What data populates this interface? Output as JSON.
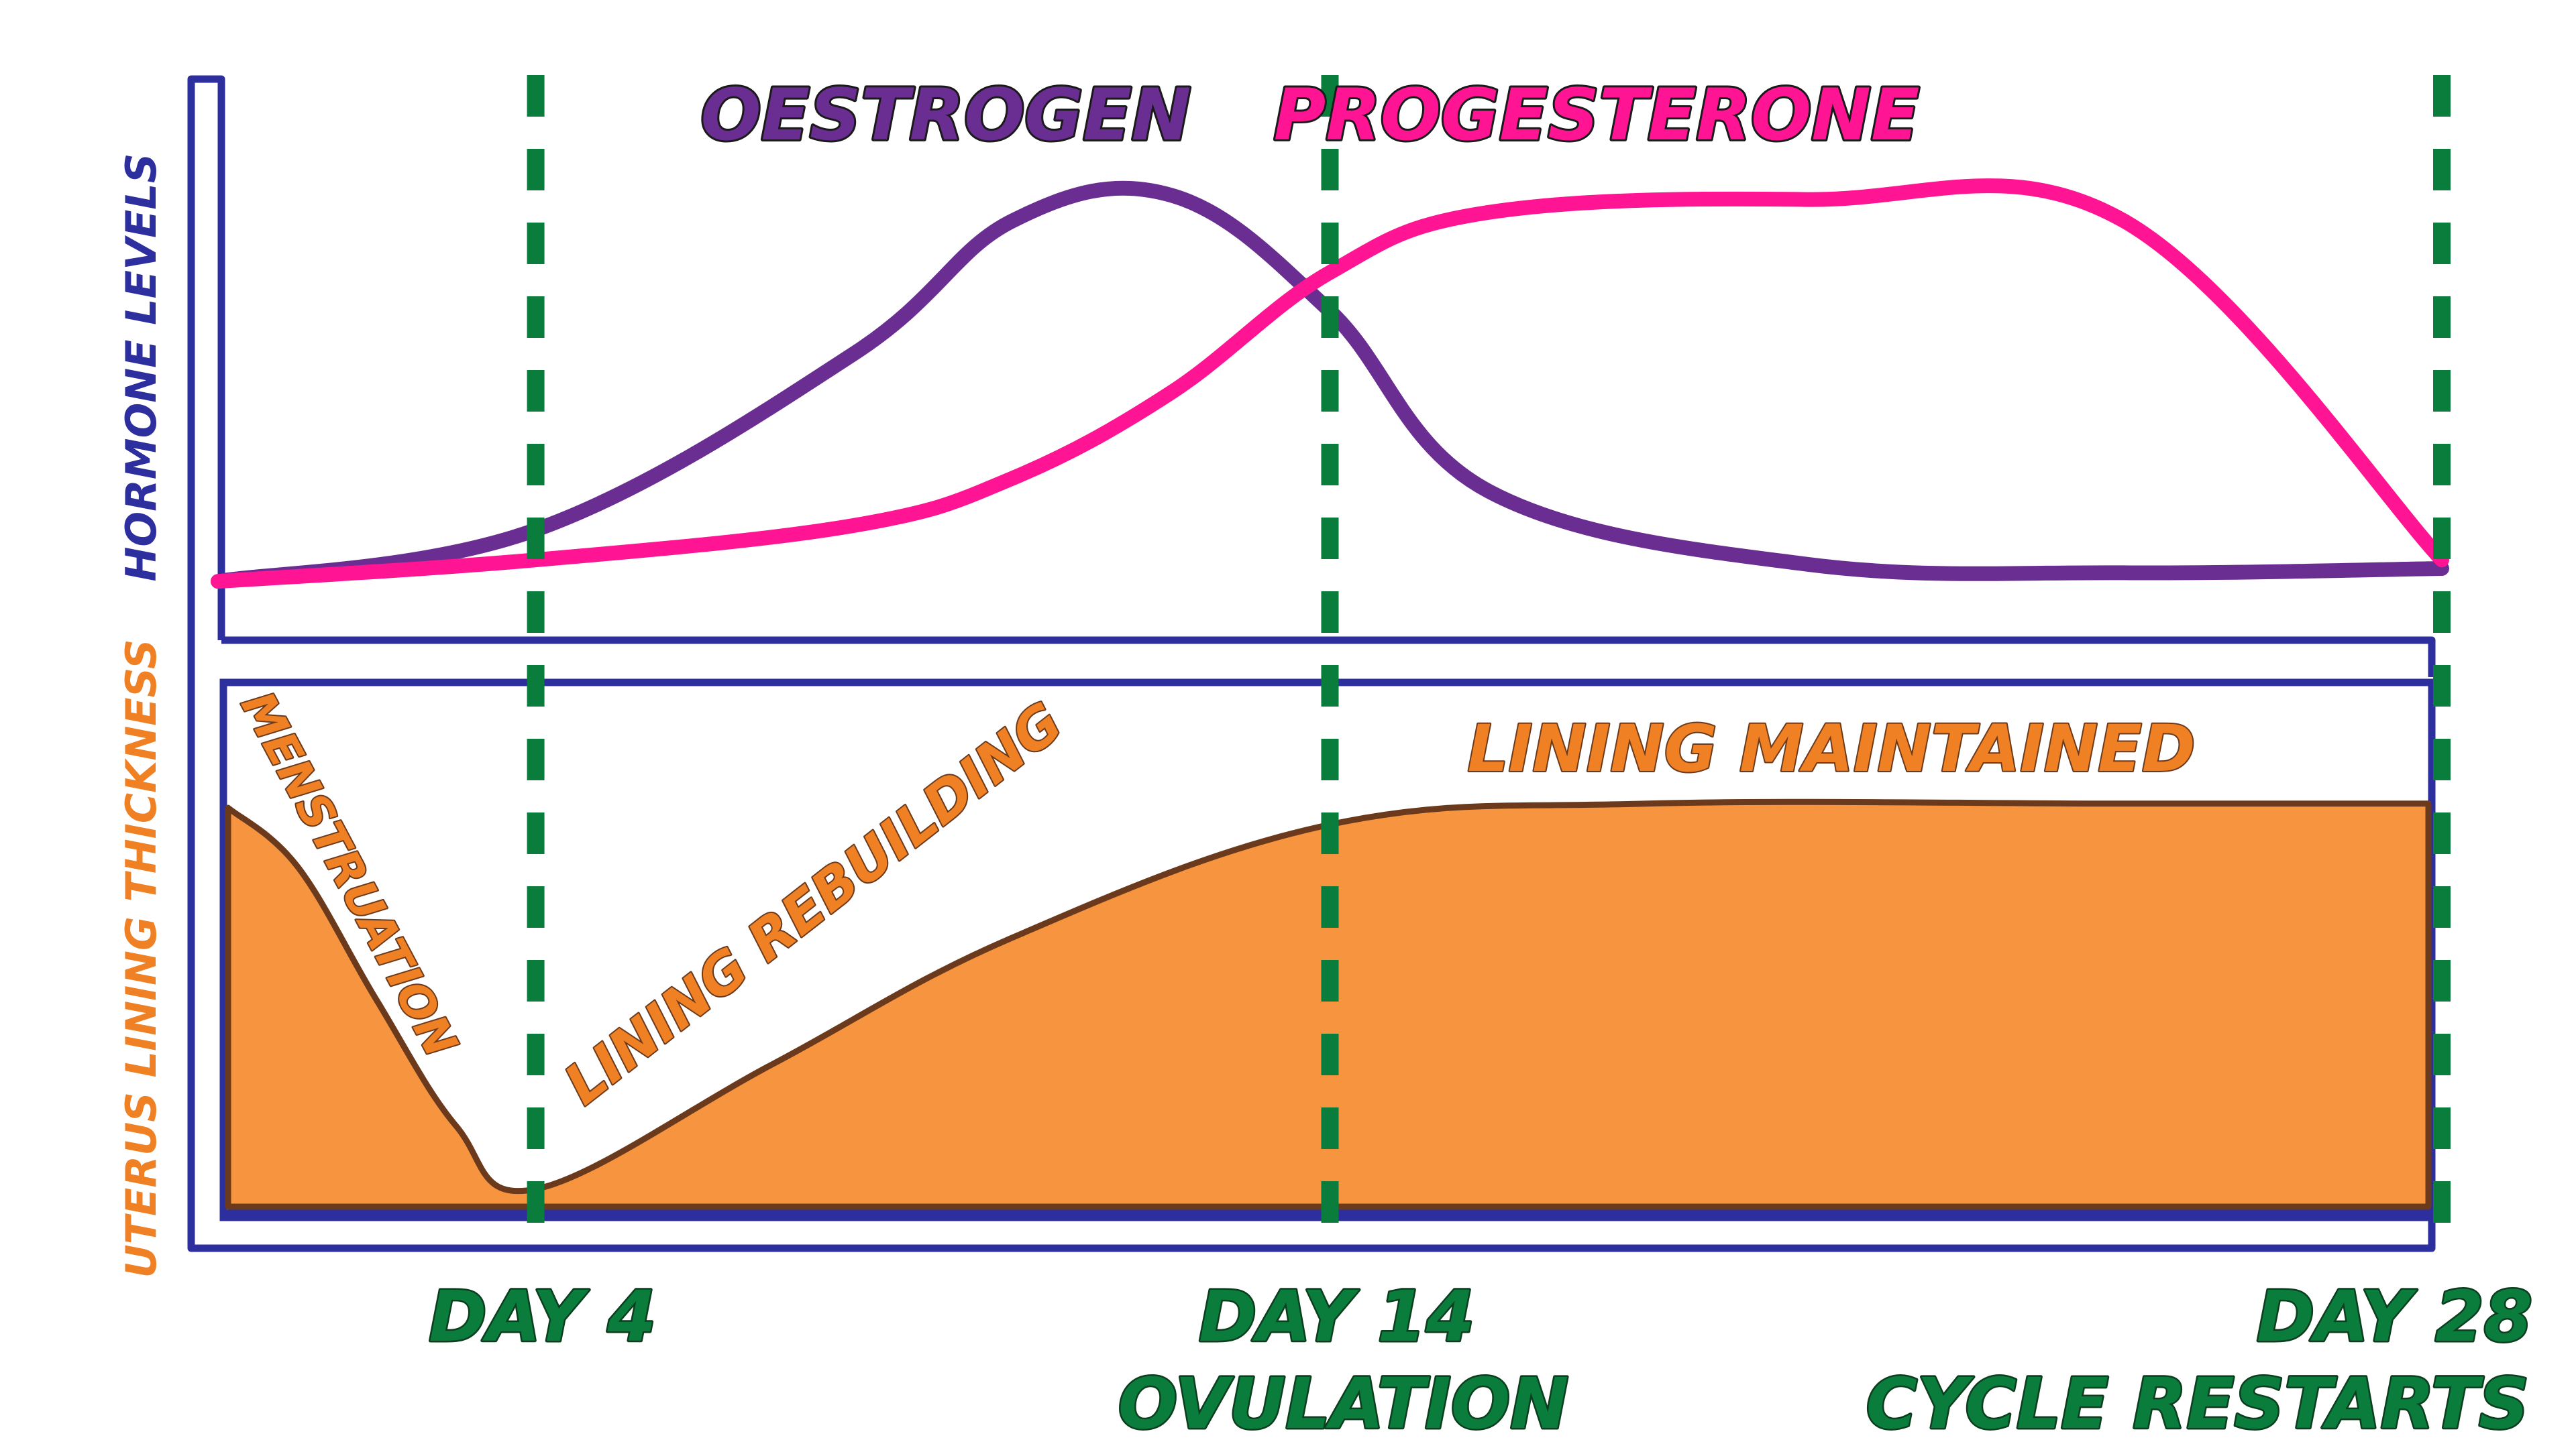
{
  "colors": {
    "axis": "#2e2f9e",
    "oestrogen": "#6a2d91",
    "progesterone": "#ff1493",
    "lining_fill": "#f79440",
    "lining_edge": "#6b3a1c",
    "day_marker": "#0a7c3b",
    "lining_text": "#f08024"
  },
  "y_axis_labels": {
    "hormones": "HORMONE LEVELS",
    "uterus": "UTERUS LINING THICKNESS"
  },
  "curve_labels": {
    "oestrogen": "OESTROGEN",
    "progesterone": "PROGESTERONE"
  },
  "phase_labels": {
    "menstruation": "MENSTRUATION",
    "rebuilding": "LINING REBUILDING",
    "maintained": "LINING MAINTAINED"
  },
  "day_markers": [
    {
      "day": 4,
      "label": "DAY 4",
      "sublabel": ""
    },
    {
      "day": 14,
      "label": "DAY 14",
      "sublabel": "OVULATION"
    },
    {
      "day": 28,
      "label": "DAY 28",
      "sublabel": "CYCLE RESTARTS"
    }
  ],
  "chart_data": {
    "type": "line",
    "x_range_days": [
      0,
      28
    ],
    "hormone_levels": {
      "series": [
        {
          "name": "OESTROGEN",
          "x": [
            0,
            4,
            8,
            10,
            12,
            14,
            16,
            20,
            24,
            28
          ],
          "y": [
            0.02,
            0.14,
            0.55,
            0.86,
            0.92,
            0.65,
            0.23,
            0.06,
            0.04,
            0.05
          ]
        },
        {
          "name": "PROGESTERONE",
          "x": [
            0,
            4,
            8,
            10,
            12,
            14,
            16,
            20,
            24,
            28
          ],
          "y": [
            0.02,
            0.07,
            0.15,
            0.26,
            0.46,
            0.74,
            0.88,
            0.91,
            0.86,
            0.07
          ]
        }
      ]
    },
    "uterus_lining_thickness": {
      "x": [
        0,
        1,
        2,
        3,
        4,
        7,
        10,
        14,
        18,
        24,
        28
      ],
      "y": [
        0.96,
        0.82,
        0.5,
        0.2,
        0.05,
        0.35,
        0.65,
        0.92,
        0.97,
        0.97,
        0.97
      ]
    }
  }
}
